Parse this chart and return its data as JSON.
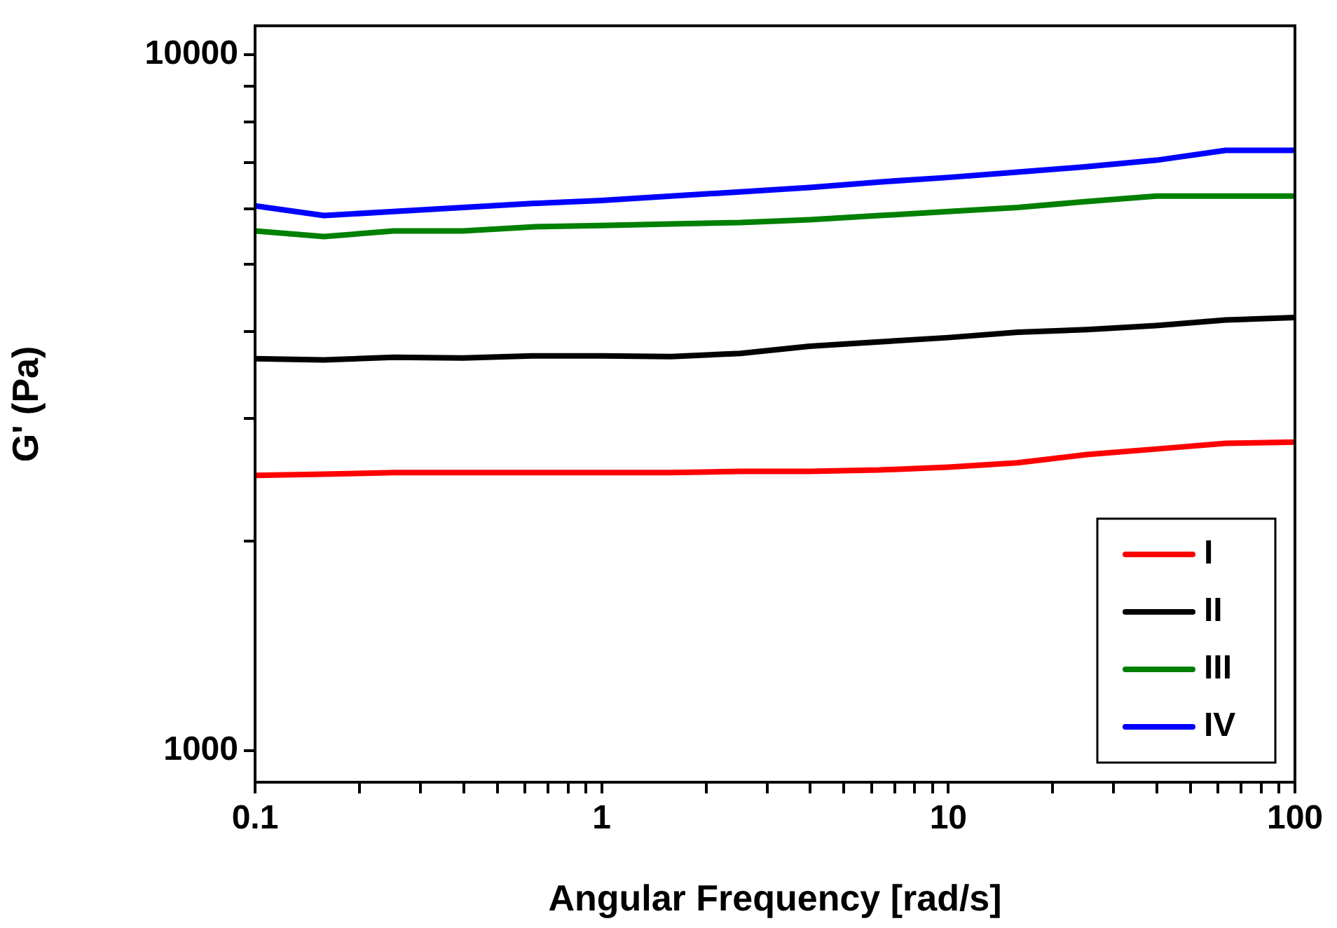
{
  "chart_data": {
    "type": "line",
    "xlabel": "Angular Frequency [rad/s]",
    "ylabel": "G' (Pa)",
    "x": [
      0.1,
      0.158,
      0.251,
      0.398,
      0.631,
      1,
      1.585,
      2.51,
      3.98,
      6.31,
      10,
      15.85,
      25.1,
      39.8,
      63.1,
      100
    ],
    "series": [
      {
        "name": "I",
        "color": "#ff0000",
        "values": [
          2484,
          2495,
          2507,
          2507,
          2507,
          2507,
          2507,
          2518,
          2518,
          2529,
          2553,
          2590,
          2662,
          2711,
          2762,
          2774
        ]
      },
      {
        "name": "II",
        "color": "#000000",
        "values": [
          3656,
          3640,
          3672,
          3665,
          3690,
          3690,
          3680,
          3720,
          3810,
          3865,
          3920,
          3990,
          4025,
          4080,
          4155,
          4190
        ]
      },
      {
        "name": "III",
        "color": "#008000",
        "values": [
          5578,
          5476,
          5578,
          5578,
          5655,
          5680,
          5710,
          5735,
          5790,
          5870,
          5950,
          6030,
          6150,
          6260,
          6260,
          6260
        ]
      },
      {
        "name": "IV",
        "color": "#0000ff",
        "values": [
          6060,
          5870,
          5950,
          6030,
          6110,
          6170,
          6260,
          6350,
          6440,
          6560,
          6660,
          6780,
          6900,
          7050,
          7285,
          7285
        ]
      }
    ],
    "log": "xy",
    "xlim": [
      0.1,
      100
    ],
    "ylim": [
      900,
      11000
    ],
    "xticks": [
      0.1,
      {
        "value": 0.2,
        "label": null
      },
      {
        "value": 0.3,
        "label": null
      },
      {
        "value": 0.4,
        "label": null
      },
      {
        "value": 0.5,
        "label": null
      },
      {
        "value": 0.6,
        "label": null
      },
      {
        "value": 0.7,
        "label": null
      },
      {
        "value": 0.8,
        "label": null
      },
      {
        "value": 0.9,
        "label": null
      },
      1,
      {
        "value": 2,
        "label": null
      },
      {
        "value": 3,
        "label": null
      },
      {
        "value": 4,
        "label": null
      },
      {
        "value": 5,
        "label": null
      },
      {
        "value": 6,
        "label": null
      },
      {
        "value": 7,
        "label": null
      },
      {
        "value": 8,
        "label": null
      },
      {
        "value": 9,
        "label": null
      },
      10,
      {
        "value": 20,
        "label": null
      },
      {
        "value": 30,
        "label": null
      },
      {
        "value": 40,
        "label": null
      },
      {
        "value": 50,
        "label": null
      },
      {
        "value": 60,
        "label": null
      },
      {
        "value": 70,
        "label": null
      },
      {
        "value": 80,
        "label": null
      },
      {
        "value": 90,
        "label": null
      },
      100
    ],
    "yticks": [
      1000,
      {
        "value": 2000,
        "label": null
      },
      {
        "value": 3000,
        "label": null
      },
      {
        "value": 4000,
        "label": null
      },
      {
        "value": 5000,
        "label": null
      },
      {
        "value": 6000,
        "label": null
      },
      {
        "value": 7000,
        "label": null
      },
      {
        "value": 8000,
        "label": null
      },
      {
        "value": 9000,
        "label": null
      },
      10000
    ],
    "grid": false,
    "legend": "bottom right",
    "marker": "none",
    "line_style": "solid"
  }
}
